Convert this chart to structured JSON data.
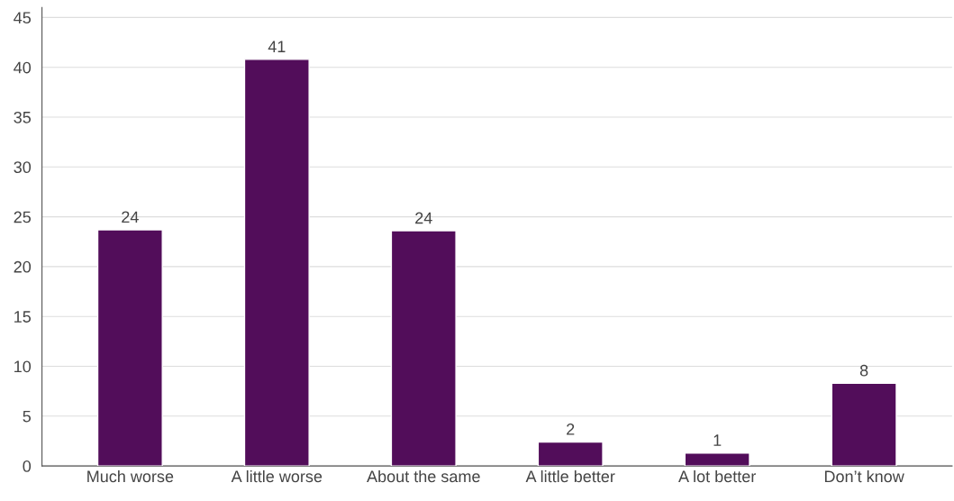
{
  "chart_data": {
    "type": "bar",
    "categories": [
      "Much worse",
      "A little worse",
      "About the same",
      "A little better",
      "A lot better",
      "Don’t know"
    ],
    "values": [
      23.7,
      40.8,
      23.6,
      2.4,
      1.3,
      8.3
    ],
    "value_labels": [
      "24",
      "41",
      "24",
      "2",
      "1",
      "8"
    ],
    "color": "#520d5a",
    "ylim": [
      0,
      46
    ],
    "yticks": [
      0,
      5,
      10,
      15,
      20,
      25,
      30,
      35,
      40,
      45
    ],
    "grid": "y",
    "legend": false
  }
}
